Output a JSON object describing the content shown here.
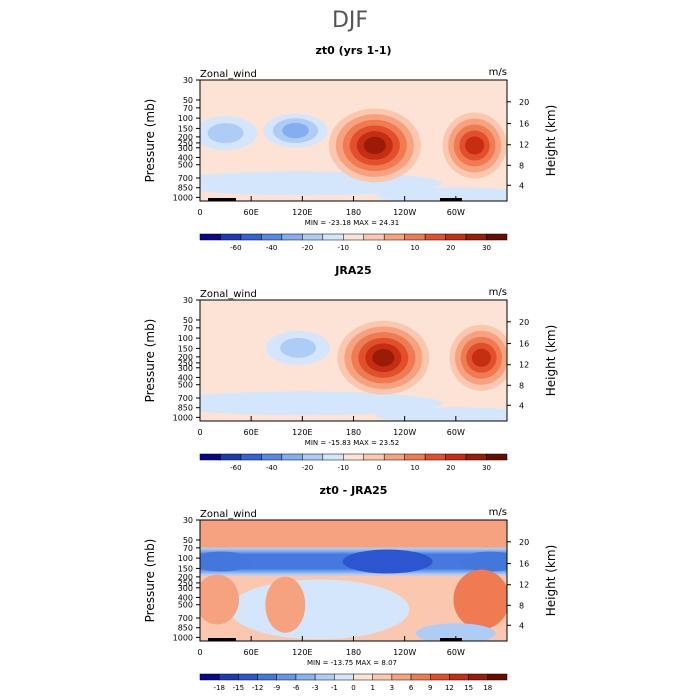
{
  "page": {
    "title": "DJF"
  },
  "common": {
    "ylabel_left": "Pressure  (mb)",
    "ylabel_right": "Height  (km)",
    "field_label": "Zonal_wind",
    "units": "m/s",
    "x_ticks": [
      "0",
      "60E",
      "120E",
      "180",
      "120W",
      "60W"
    ],
    "y_ticks_pressure": [
      "30",
      "50",
      "70",
      "100",
      "150",
      "200",
      "250",
      "300",
      "400",
      "500",
      "700",
      "850",
      "1000"
    ],
    "y_ticks_height": [
      "20",
      "16",
      "12",
      "8",
      "4"
    ]
  },
  "chart_data": [
    {
      "type": "heatmap",
      "panel": "model",
      "title": "zt0 (yrs 1-1)",
      "stats": "MIN =  -23.18   MAX =   24.31",
      "colorbar_labels": [
        "-60",
        "-40",
        "-20",
        "-10",
        "0",
        "10",
        "20",
        "30"
      ],
      "colors": [
        "#08088c",
        "#1b3ab8",
        "#3560d8",
        "#5a88e6",
        "#84aef0",
        "#adcdf6",
        "#d4e6fb",
        "#fde3d6",
        "#fbc7ae",
        "#f6a27f",
        "#f07a52",
        "#e24f2c",
        "#c52e12",
        "#9a1b06",
        "#6b0b00"
      ],
      "features": [
        {
          "kind": "jet",
          "lon": 205,
          "p": 200,
          "value": 24
        },
        {
          "kind": "jet",
          "lon": 322,
          "p": 200,
          "value": 18
        },
        {
          "kind": "easterly",
          "lon": 112,
          "p": 130,
          "value": -20
        },
        {
          "kind": "easterly",
          "lon": 30,
          "p": 140,
          "value": -10
        }
      ]
    },
    {
      "type": "heatmap",
      "panel": "reanalysis",
      "title": "JRA25",
      "stats": "MIN =  -15.83   MAX =   23.52",
      "colorbar_labels": [
        "-60",
        "-40",
        "-20",
        "-10",
        "0",
        "10",
        "20",
        "30"
      ],
      "colors": [
        "#08088c",
        "#1b3ab8",
        "#3560d8",
        "#5a88e6",
        "#84aef0",
        "#adcdf6",
        "#d4e6fb",
        "#fde3d6",
        "#fbc7ae",
        "#f6a27f",
        "#f07a52",
        "#e24f2c",
        "#c52e12",
        "#9a1b06",
        "#6b0b00"
      ],
      "features": [
        {
          "kind": "jet",
          "lon": 215,
          "p": 160,
          "value": 23
        },
        {
          "kind": "jet",
          "lon": 330,
          "p": 160,
          "value": 17
        },
        {
          "kind": "easterly",
          "lon": 115,
          "p": 120,
          "value": -15
        }
      ]
    },
    {
      "type": "heatmap",
      "panel": "difference",
      "title": "zt0 - JRA25",
      "stats": "MIN =  -13.75   MAX =    8.07",
      "colorbar_labels": [
        "-18",
        "-15",
        "-12",
        "-9",
        "-6",
        "-3",
        "-1",
        "0",
        "1",
        "3",
        "6",
        "9",
        "12",
        "15",
        "18"
      ],
      "colors": [
        "#08088c",
        "#1b3ab8",
        "#2c56cf",
        "#4477dc",
        "#6596e8",
        "#88b3f0",
        "#adcdf6",
        "#d4e6fb",
        "#fde3d6",
        "#fbc7ae",
        "#f6a27f",
        "#f07a52",
        "#e24f2c",
        "#c52e12",
        "#9a1b06",
        "#6b0b00"
      ],
      "features": [
        {
          "kind": "negative",
          "lon": 220,
          "p": 100,
          "value": -13
        },
        {
          "kind": "negative",
          "lon": 30,
          "p": 100,
          "value": -10
        },
        {
          "kind": "positive",
          "lon": 20,
          "p": 60,
          "value": 8
        },
        {
          "kind": "positive",
          "lon": 330,
          "p": 300,
          "value": 7
        }
      ]
    }
  ]
}
